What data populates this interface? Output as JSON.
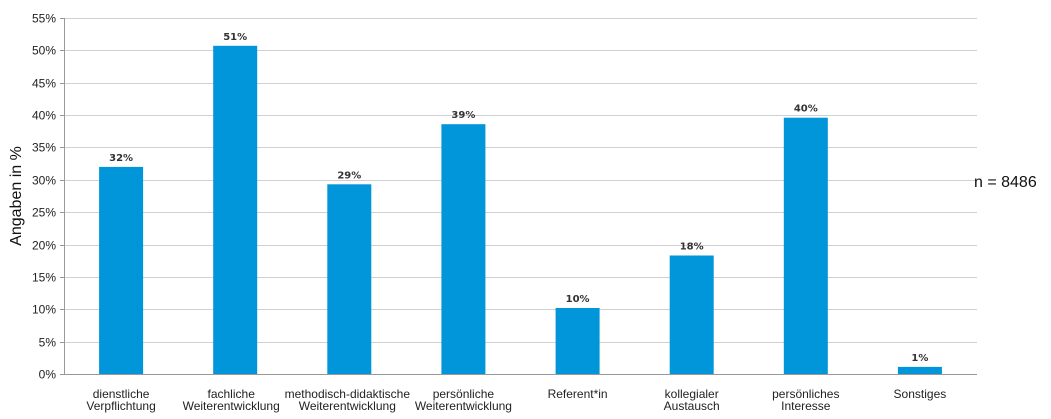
{
  "chart_data": {
    "type": "bar",
    "categories": [
      [
        "dienstliche",
        "Verpflichtung"
      ],
      [
        "fachliche",
        "Weiterentwicklung"
      ],
      [
        "methodisch-didaktische",
        "Weiterentwicklung"
      ],
      [
        "persönliche",
        "Weiterentwicklung"
      ],
      [
        "Referent*in"
      ],
      [
        "kollegialer",
        "Austausch"
      ],
      [
        "persönliches",
        "Interesse"
      ],
      [
        "Sonstiges"
      ]
    ],
    "values": [
      32,
      51,
      29,
      39,
      10,
      18,
      40,
      1
    ],
    "data_labels": [
      "32%",
      "51%",
      "29%",
      "39%",
      "10%",
      "18%",
      "40%",
      "1%"
    ],
    "plotted_values": [
      32,
      50.7,
      29.3,
      38.6,
      10.2,
      18.3,
      39.6,
      1.1
    ],
    "ylabel": "Angaben in %",
    "ylim": [
      0,
      55
    ],
    "yticks": [
      "0%",
      "5%",
      "10%",
      "15%",
      "20%",
      "25%",
      "30%",
      "35%",
      "40%",
      "45%",
      "50%",
      "55%"
    ],
    "grid": true,
    "bar_color": "#0096d9",
    "annotation": "n = 8486"
  }
}
